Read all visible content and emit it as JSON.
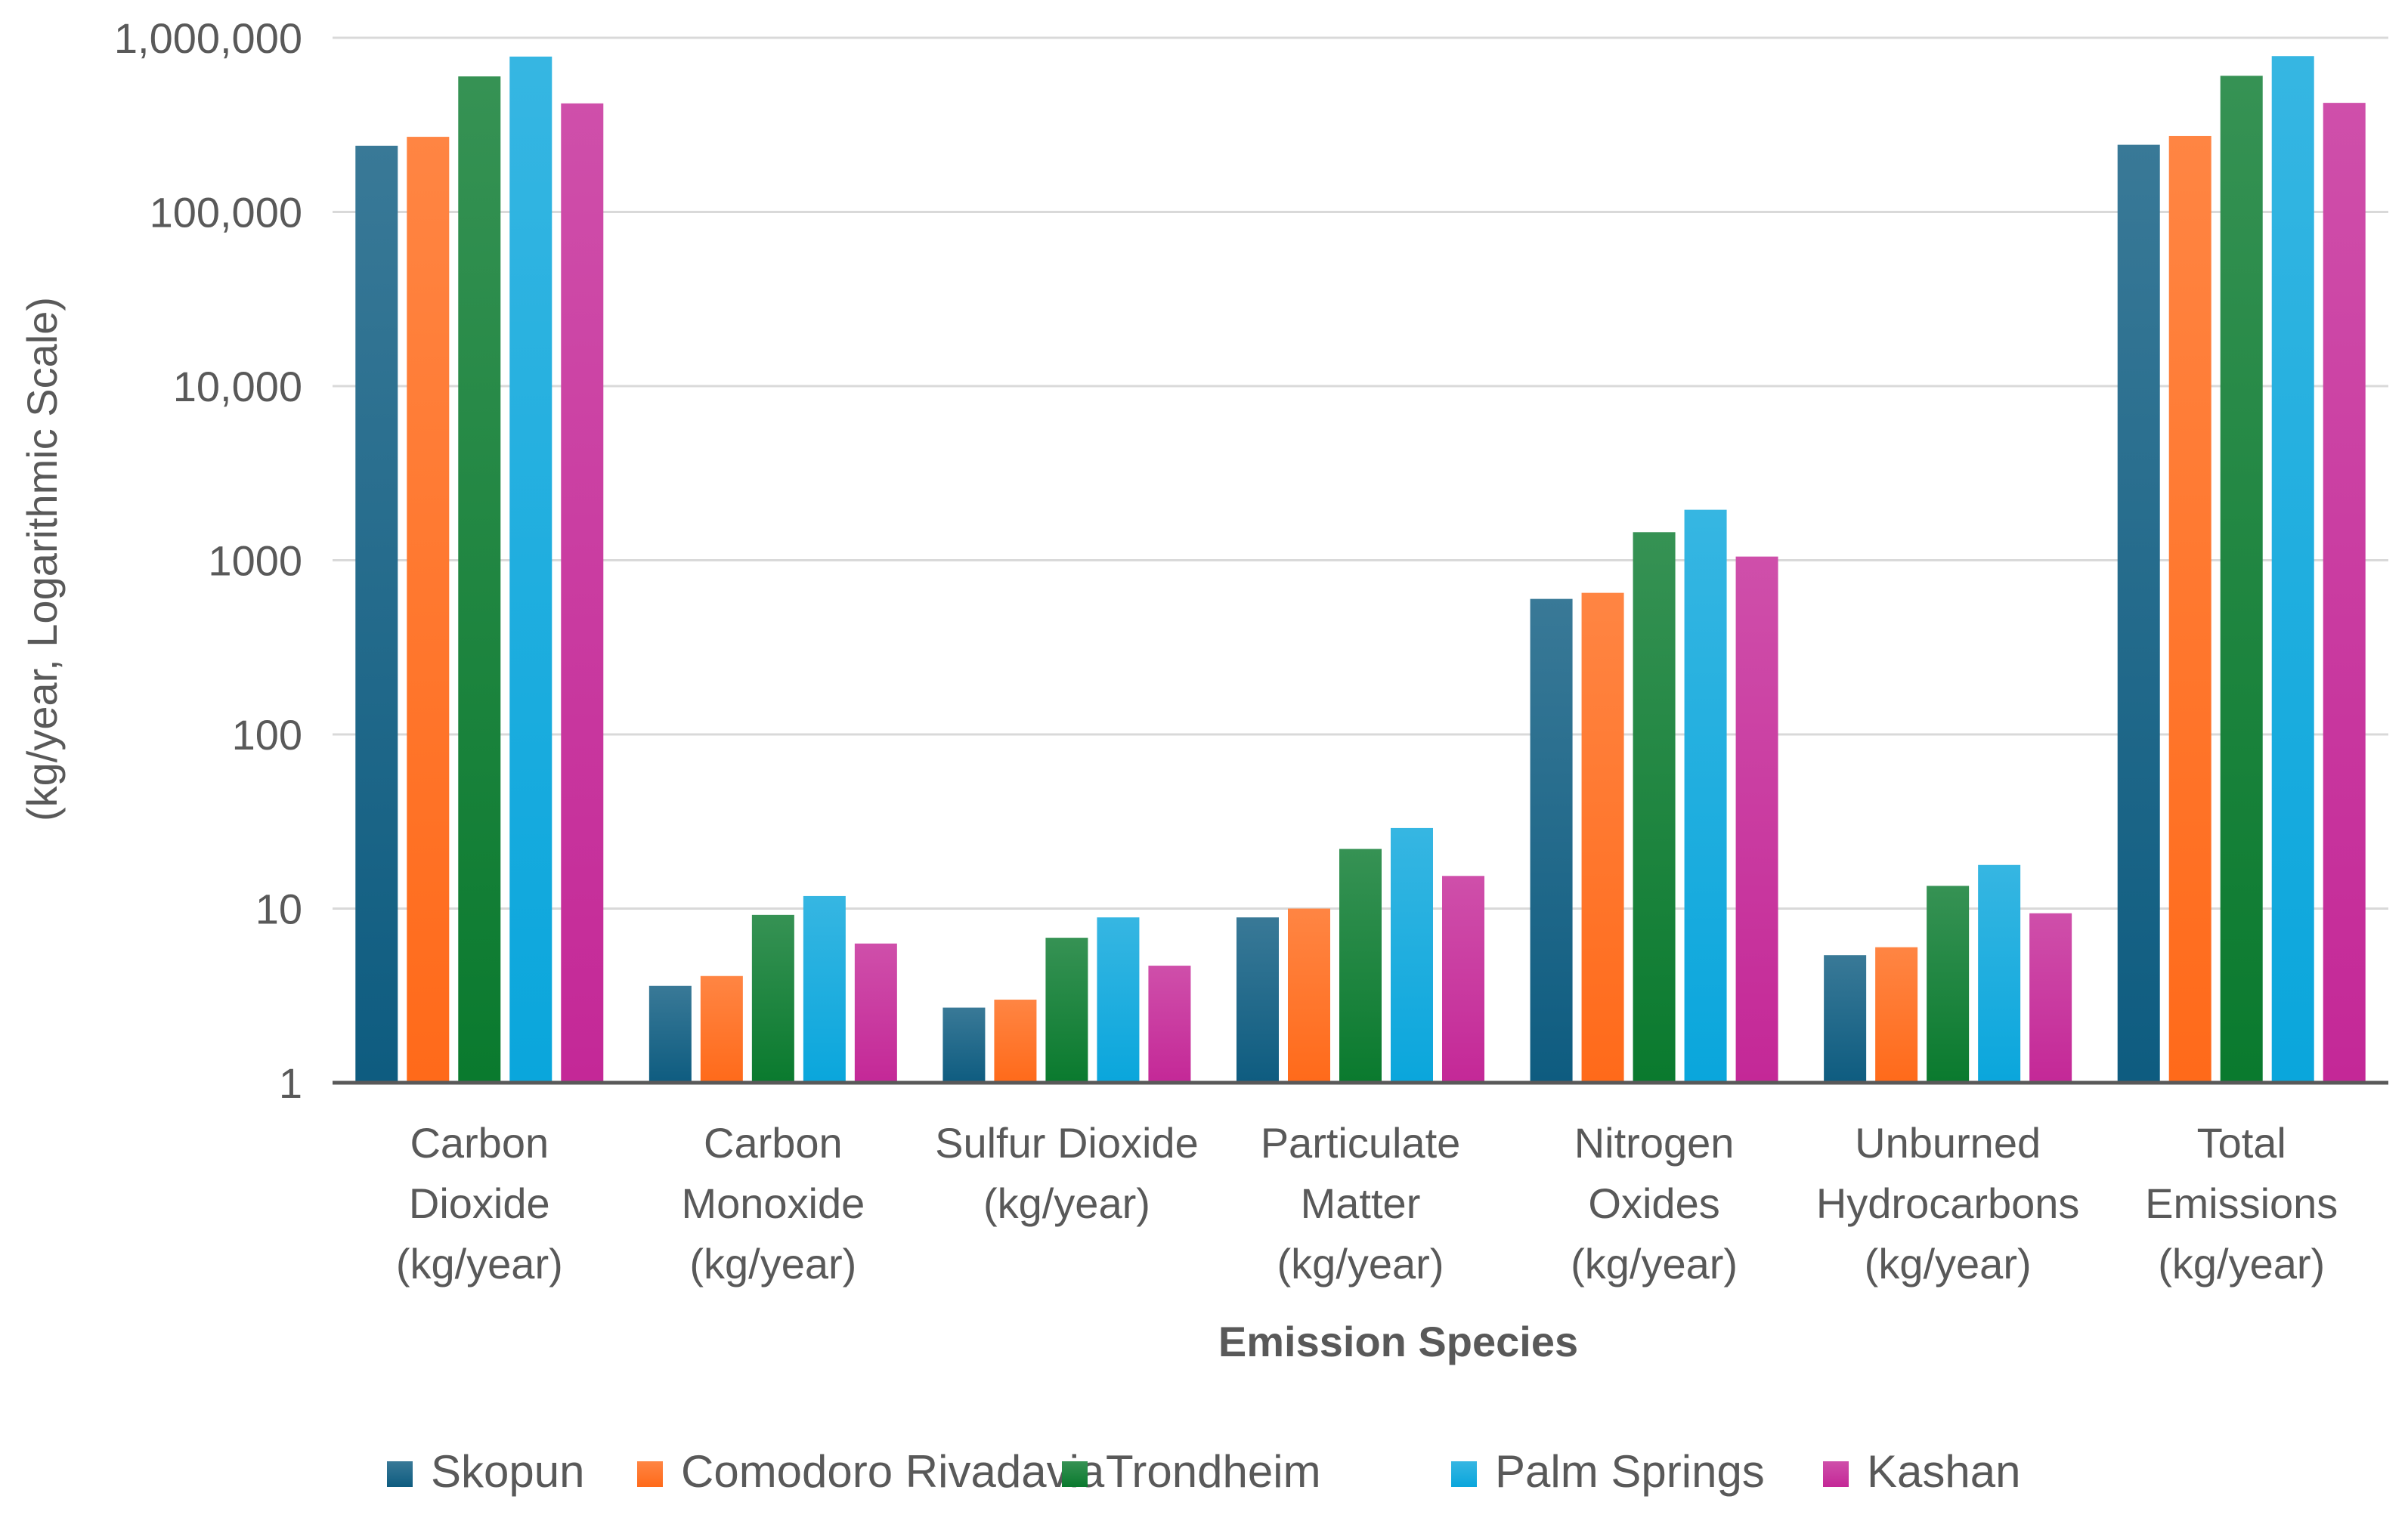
{
  "chart_data": {
    "type": "bar",
    "title": "",
    "xlabel": "Emission Species",
    "ylabel": "(kg/year, Logarithmic Scale)",
    "yscale": "log",
    "ylim": [
      1,
      1000000
    ],
    "grid": true,
    "legend_position": "bottom",
    "y_ticks": [
      {
        "value": 1,
        "label": "1"
      },
      {
        "value": 10,
        "label": "10"
      },
      {
        "value": 100,
        "label": "100"
      },
      {
        "value": 1000,
        "label": "1000"
      },
      {
        "value": 10000,
        "label": "10,000"
      },
      {
        "value": 100000,
        "label": "100,000"
      },
      {
        "value": 1000000,
        "label": "1,000,000"
      }
    ],
    "categories": [
      "Carbon Dioxide (kg/year)",
      "Carbon Monoxide (kg/year)",
      "Sulfur Dioxide (kg/year)",
      "Particulate Matter (kg/year)",
      "Nitrogen Oxides (kg/year)",
      "Unburned Hydrocarbons (kg/year)",
      "Total Emissions (kg/year)"
    ],
    "category_label_lines": [
      [
        "Carbon",
        "Dioxide",
        "(kg/year)"
      ],
      [
        "Carbon",
        "Monoxide",
        "(kg/year)"
      ],
      [
        "Sulfur Dioxide",
        "(kg/year)"
      ],
      [
        "Particulate",
        "Matter",
        "(kg/year)"
      ],
      [
        "Nitrogen",
        "Oxides",
        "(kg/year)"
      ],
      [
        "Unburned",
        "Hydrocarbons",
        "(kg/year)"
      ],
      [
        "Total",
        "Emissions",
        "(kg/year)"
      ]
    ],
    "series": [
      {
        "name": "Skopun",
        "color": "#0E5C80",
        "values": [
          240000,
          3.6,
          2.7,
          8.9,
          600,
          5.4,
          243000
        ]
      },
      {
        "name": "Comodoro Rivadavia",
        "color": "#FF6A1A",
        "values": [
          270000,
          4.1,
          3.0,
          10,
          650,
          6.0,
          273000
        ]
      },
      {
        "name": "Trondheim",
        "color": "#0A7A2E",
        "values": [
          600000,
          9.2,
          6.8,
          22,
          1450,
          13.5,
          605000
        ]
      },
      {
        "name": "Palm Springs",
        "color": "#0AA6DC",
        "values": [
          780000,
          11.8,
          8.9,
          29,
          1950,
          17.8,
          785000
        ]
      },
      {
        "name": "Kashan",
        "color": "#C42897",
        "values": [
          420000,
          6.3,
          4.7,
          15.4,
          1050,
          9.4,
          423000
        ]
      }
    ]
  }
}
